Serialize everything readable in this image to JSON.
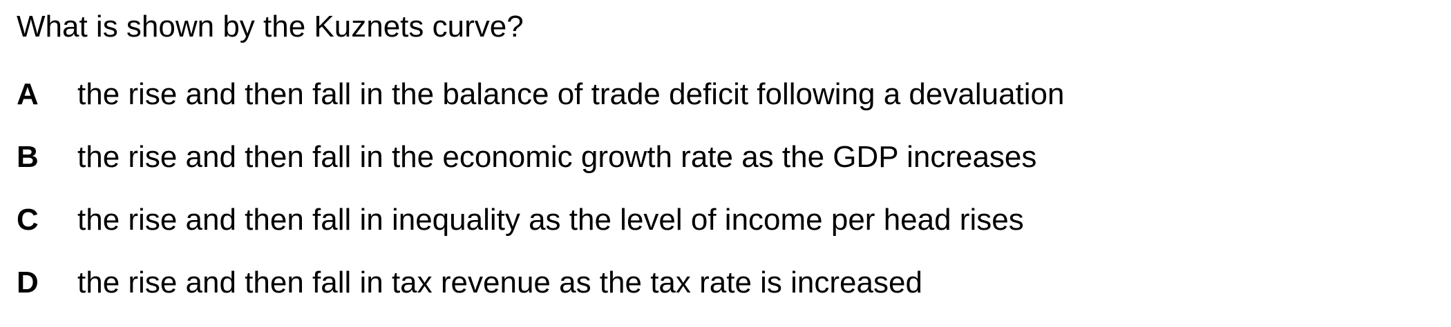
{
  "question": "What is shown by the Kuznets curve?",
  "options": [
    {
      "letter": "A",
      "text": "the rise and then fall in the balance of trade deficit following a devaluation"
    },
    {
      "letter": "B",
      "text": "the rise and then fall in the economic growth rate as the GDP increases"
    },
    {
      "letter": "C",
      "text": "the rise and then fall in inequality as the level of income per head rises"
    },
    {
      "letter": "D",
      "text": "the rise and then fall in tax revenue as the tax rate is increased"
    }
  ]
}
